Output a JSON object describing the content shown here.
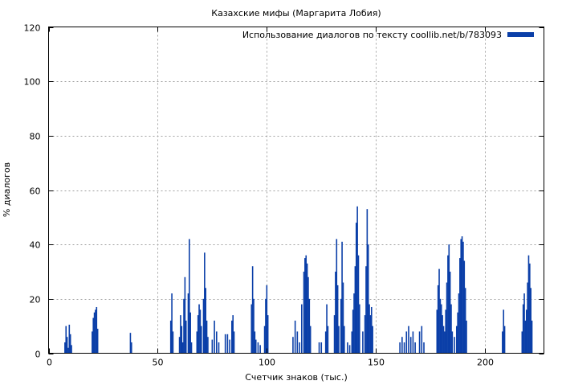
{
  "chart_data": {
    "type": "bar",
    "title": "Казахские мифы (Маргарита Лобия)",
    "xlabel": "Счетчик знаков (тыс.)",
    "ylabel": "% диалогов",
    "xlim": [
      0,
      227
    ],
    "ylim": [
      0,
      120
    ],
    "xticks": [
      0,
      50,
      100,
      150,
      200
    ],
    "yticks": [
      0,
      20,
      40,
      60,
      80,
      100,
      120
    ],
    "grid": true,
    "legend_position": "top-right",
    "series": [
      {
        "name": "Использование диалогов по тексту coollib.net/b/783093",
        "color": "#0b3fa8",
        "points": [
          [
            7.5,
            4
          ],
          [
            8.0,
            10
          ],
          [
            8.5,
            6
          ],
          [
            9.0,
            2
          ],
          [
            9.5,
            10.5
          ],
          [
            10.0,
            7
          ],
          [
            10.5,
            3
          ],
          [
            20.0,
            8
          ],
          [
            20.5,
            13
          ],
          [
            21.0,
            15
          ],
          [
            21.5,
            16
          ],
          [
            22.0,
            17
          ],
          [
            22.5,
            9
          ],
          [
            37.5,
            7.5
          ],
          [
            38.0,
            4
          ],
          [
            56.0,
            12
          ],
          [
            56.5,
            22
          ],
          [
            57.0,
            8
          ],
          [
            60.0,
            6
          ],
          [
            60.5,
            14
          ],
          [
            61.0,
            10
          ],
          [
            61.5,
            4
          ],
          [
            62.0,
            20
          ],
          [
            62.5,
            28
          ],
          [
            63.0,
            12
          ],
          [
            64.0,
            22
          ],
          [
            64.5,
            42
          ],
          [
            65.0,
            15
          ],
          [
            65.5,
            4
          ],
          [
            68.0,
            8
          ],
          [
            68.5,
            14
          ],
          [
            69.0,
            18
          ],
          [
            69.5,
            16
          ],
          [
            70.0,
            10
          ],
          [
            71.0,
            20
          ],
          [
            71.5,
            37
          ],
          [
            72.0,
            24
          ],
          [
            72.5,
            12
          ],
          [
            73.0,
            6
          ],
          [
            75.0,
            5
          ],
          [
            76.0,
            12
          ],
          [
            77.0,
            8
          ],
          [
            78.0,
            4
          ],
          [
            81.0,
            7
          ],
          [
            82.0,
            7
          ],
          [
            83.0,
            5
          ],
          [
            84.0,
            12
          ],
          [
            84.5,
            14
          ],
          [
            85.0,
            8
          ],
          [
            93.0,
            18
          ],
          [
            93.5,
            32
          ],
          [
            94.0,
            20
          ],
          [
            94.5,
            8
          ],
          [
            95.0,
            5
          ],
          [
            96.0,
            4
          ],
          [
            97.0,
            3
          ],
          [
            99.0,
            10
          ],
          [
            99.5,
            20
          ],
          [
            100.0,
            25
          ],
          [
            100.5,
            14
          ],
          [
            112.0,
            6
          ],
          [
            113.0,
            12
          ],
          [
            114.0,
            8
          ],
          [
            115.0,
            4
          ],
          [
            116.0,
            18
          ],
          [
            117.0,
            30
          ],
          [
            117.5,
            35
          ],
          [
            118.0,
            36
          ],
          [
            118.5,
            33
          ],
          [
            119.0,
            28
          ],
          [
            119.5,
            20
          ],
          [
            120.0,
            10
          ],
          [
            124.0,
            4
          ],
          [
            125.0,
            4
          ],
          [
            127.0,
            8
          ],
          [
            127.5,
            18
          ],
          [
            128.0,
            10
          ],
          [
            131.0,
            14
          ],
          [
            131.5,
            30
          ],
          [
            132.0,
            42
          ],
          [
            132.5,
            25
          ],
          [
            133.0,
            10
          ],
          [
            134.0,
            20
          ],
          [
            134.5,
            41
          ],
          [
            135.0,
            26
          ],
          [
            135.5,
            10
          ],
          [
            137.0,
            4
          ],
          [
            138.0,
            3
          ],
          [
            139.0,
            8
          ],
          [
            139.5,
            16
          ],
          [
            140.0,
            22
          ],
          [
            140.5,
            32
          ],
          [
            141.0,
            48
          ],
          [
            141.5,
            54
          ],
          [
            142.0,
            36
          ],
          [
            142.5,
            18
          ],
          [
            144.0,
            8
          ],
          [
            145.0,
            14
          ],
          [
            145.5,
            32
          ],
          [
            146.0,
            53
          ],
          [
            146.5,
            40
          ],
          [
            147.0,
            18
          ],
          [
            147.5,
            14
          ],
          [
            148.0,
            17
          ],
          [
            148.5,
            10
          ],
          [
            161.0,
            4
          ],
          [
            162.0,
            6
          ],
          [
            163.0,
            4
          ],
          [
            164.0,
            8
          ],
          [
            165.0,
            10
          ],
          [
            166.0,
            6
          ],
          [
            167.0,
            8
          ],
          [
            168.0,
            4
          ],
          [
            170.0,
            8
          ],
          [
            171.0,
            10
          ],
          [
            172.0,
            4
          ],
          [
            178.0,
            16
          ],
          [
            178.5,
            25
          ],
          [
            179.0,
            31
          ],
          [
            179.5,
            20
          ],
          [
            180.0,
            18
          ],
          [
            180.5,
            14
          ],
          [
            181.0,
            10
          ],
          [
            181.5,
            8
          ],
          [
            182.0,
            16
          ],
          [
            182.5,
            26
          ],
          [
            183.0,
            36
          ],
          [
            183.5,
            40
          ],
          [
            184.0,
            30
          ],
          [
            184.5,
            18
          ],
          [
            185.0,
            8
          ],
          [
            186.0,
            6
          ],
          [
            187.0,
            10
          ],
          [
            187.5,
            15
          ],
          [
            188.0,
            22
          ],
          [
            188.5,
            35
          ],
          [
            189.0,
            42
          ],
          [
            189.5,
            43
          ],
          [
            190.0,
            41
          ],
          [
            190.5,
            34
          ],
          [
            191.0,
            24
          ],
          [
            191.5,
            12
          ],
          [
            208.0,
            8
          ],
          [
            208.5,
            16
          ],
          [
            209.0,
            10
          ],
          [
            217.0,
            8
          ],
          [
            217.5,
            18
          ],
          [
            218.0,
            22
          ],
          [
            218.5,
            12
          ],
          [
            219.0,
            16
          ],
          [
            219.5,
            26
          ],
          [
            220.0,
            36
          ],
          [
            220.5,
            33
          ],
          [
            221.0,
            24
          ],
          [
            221.5,
            12
          ]
        ]
      }
    ]
  }
}
